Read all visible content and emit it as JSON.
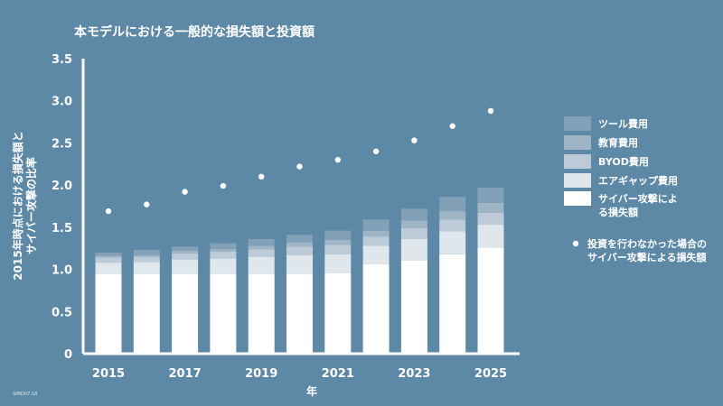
{
  "chart_data": {
    "type": "bar",
    "stacked": true,
    "title": "本モデルにおける一般的な損失額と投資額",
    "xlabel": "年",
    "ylabel_lines": [
      "2015年時点における損失額と",
      "サイバー攻撃の比率"
    ],
    "ylim": [
      0,
      3.5
    ],
    "yticks": [
      "0",
      "0.5",
      "1.0",
      "1.5",
      "2.0",
      "2.5",
      "3.0",
      "3.5"
    ],
    "categories": [
      "2015",
      "2016",
      "2017",
      "2018",
      "2019",
      "2020",
      "2021",
      "2022",
      "2023",
      "2024",
      "2025"
    ],
    "xtick_labels": [
      "2015",
      "",
      "2017",
      "",
      "2019",
      "",
      "2021",
      "",
      "2023",
      "",
      "2025"
    ],
    "series": [
      {
        "name": "サイバー攻撃による損失額",
        "color": "#ffffff",
        "values": [
          0.95,
          0.95,
          0.95,
          0.95,
          0.95,
          0.95,
          0.96,
          1.06,
          1.11,
          1.18,
          1.26
        ]
      },
      {
        "name": "エアギャップ費用",
        "color": "#dfe6ec",
        "values": [
          0.13,
          0.14,
          0.17,
          0.18,
          0.2,
          0.22,
          0.22,
          0.22,
          0.25,
          0.27,
          0.27
        ]
      },
      {
        "name": "BYOD費用",
        "color": "#bccbd7",
        "values": [
          0.06,
          0.06,
          0.07,
          0.08,
          0.09,
          0.1,
          0.11,
          0.11,
          0.13,
          0.14,
          0.14
        ]
      },
      {
        "name": "教育費用",
        "color": "#9fb5c6",
        "values": [
          0.02,
          0.02,
          0.03,
          0.03,
          0.04,
          0.05,
          0.06,
          0.07,
          0.09,
          0.1,
          0.12
        ]
      },
      {
        "name": "ツール費用",
        "color": "#82a0b7",
        "values": [
          0.04,
          0.06,
          0.05,
          0.07,
          0.08,
          0.09,
          0.11,
          0.13,
          0.14,
          0.17,
          0.18
        ]
      }
    ],
    "scatter": {
      "name": "投資を行わなかった場合のサイバー攻撃による損失額",
      "color": "#ffffff",
      "values": [
        1.69,
        1.77,
        1.92,
        1.99,
        2.1,
        2.22,
        2.3,
        2.4,
        2.53,
        2.7,
        2.88
      ]
    },
    "legend": {
      "placement": "right",
      "order": [
        {
          "label": "ツール費用",
          "color": "#82a0b7"
        },
        {
          "label": "教育費用",
          "color": "#9fb5c6"
        },
        {
          "label": "BYOD費用",
          "color": "#bccbd7"
        },
        {
          "label": "エアギャップ費用",
          "color": "#dfe6ec"
        },
        {
          "label": "サイバー攻撃によ",
          "label2": "る損失額",
          "color": "#ffffff"
        }
      ],
      "scatter_label": "投資を行わなかった場合の",
      "scatter_label2": "サイバー攻撃による損失額"
    },
    "grid": false
  },
  "footnote": "SIMD07-18"
}
